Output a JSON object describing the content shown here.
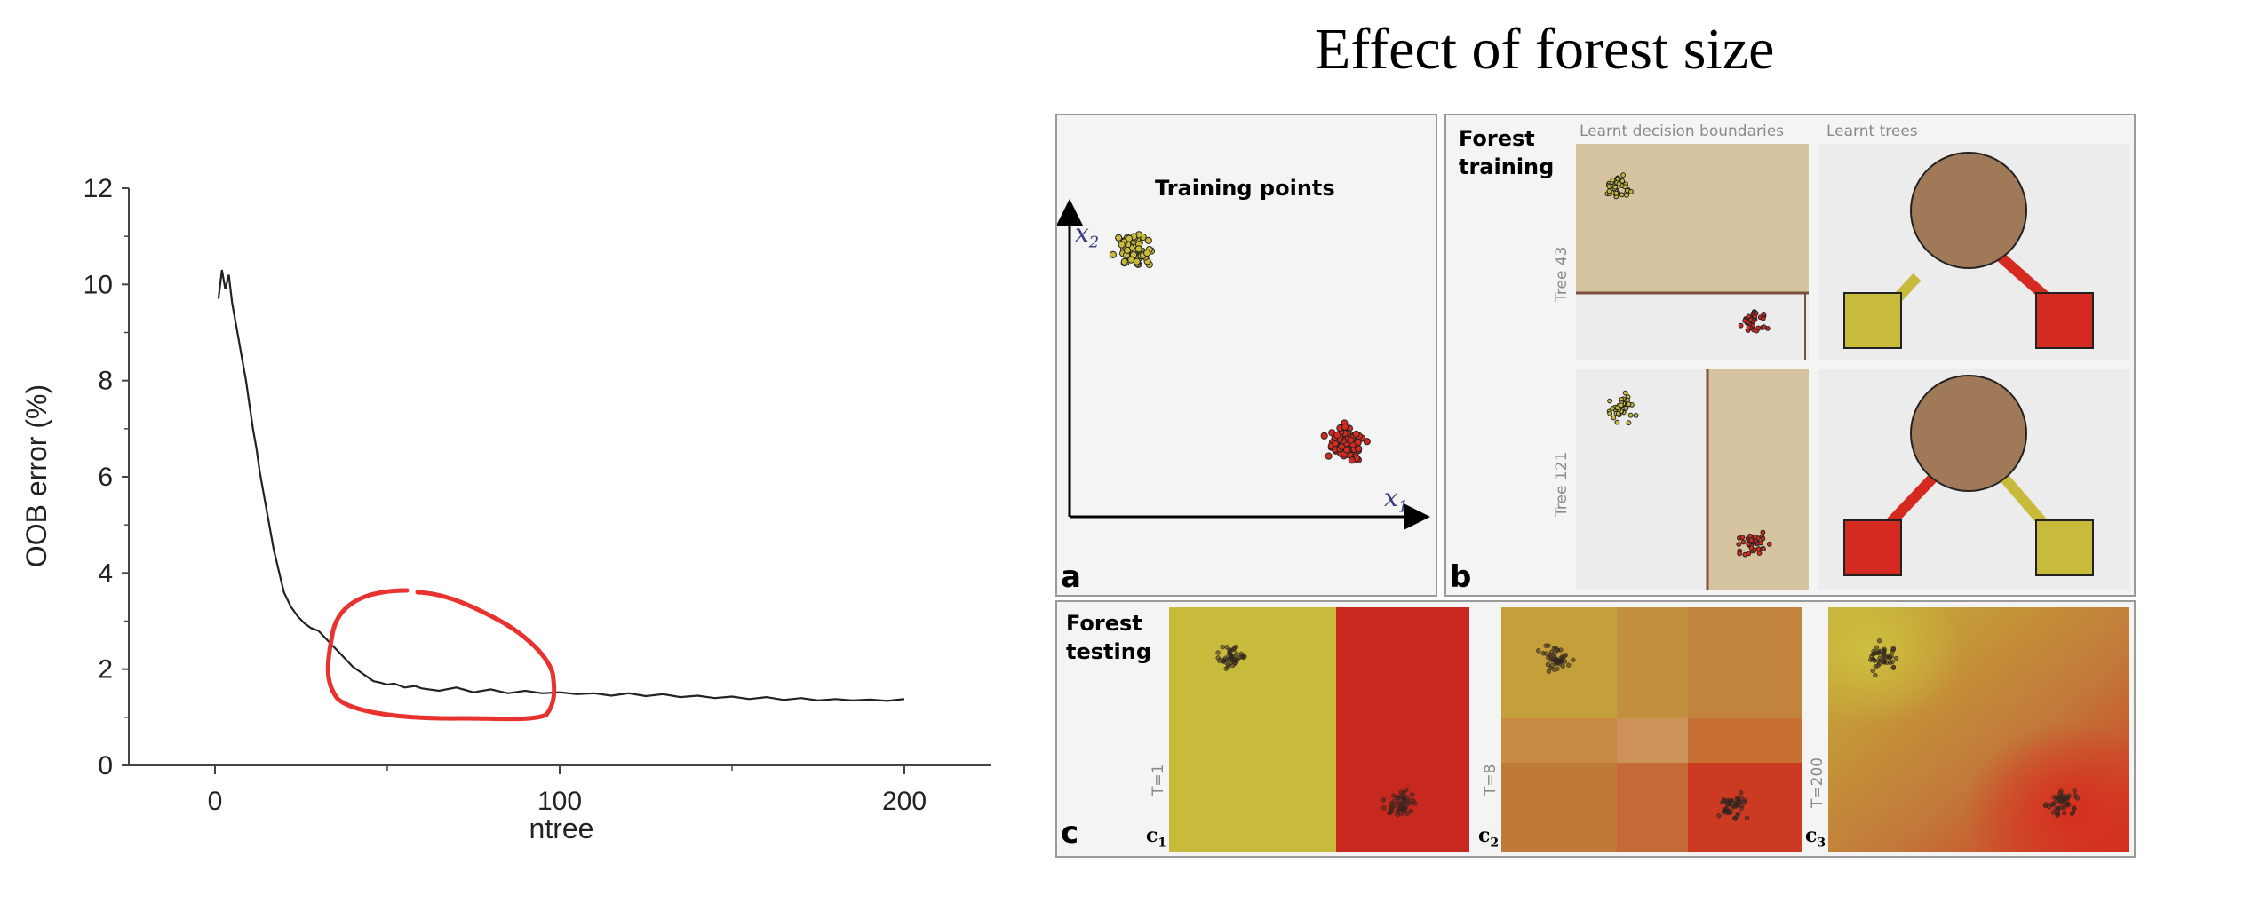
{
  "slide_title": "Effect of forest size",
  "chart_data": {
    "type": "line",
    "title": "",
    "xlabel": "ntree",
    "ylabel": "OOB error (%)",
    "xlim": [
      -25,
      225
    ],
    "ylim": [
      0,
      12
    ],
    "x_ticks": [
      "0",
      "100",
      "200"
    ],
    "y_ticks": [
      "0",
      "2",
      "4",
      "6",
      "8",
      "10",
      "12"
    ],
    "grid": false,
    "line_color": "#222222",
    "series": [
      {
        "x": [
          1,
          2,
          3,
          4,
          5,
          6,
          7,
          8,
          9,
          10,
          11,
          12,
          13,
          14,
          15,
          16,
          17,
          18,
          20,
          22,
          24,
          26,
          28,
          30,
          32,
          34,
          36,
          38,
          40,
          42,
          44,
          46,
          48,
          50,
          52,
          55,
          58,
          60,
          65,
          70,
          75,
          80,
          85,
          90,
          95,
          100,
          105,
          110,
          115,
          120,
          125,
          130,
          135,
          140,
          145,
          150,
          155,
          160,
          165,
          170,
          175,
          180,
          185,
          190,
          195,
          200
        ],
        "y": [
          9.7,
          10.3,
          9.9,
          10.2,
          9.6,
          9.2,
          8.8,
          8.4,
          8.0,
          7.5,
          7.0,
          6.6,
          6.1,
          5.7,
          5.3,
          4.9,
          4.5,
          4.2,
          3.6,
          3.3,
          3.1,
          2.95,
          2.85,
          2.8,
          2.65,
          2.5,
          2.35,
          2.2,
          2.05,
          1.95,
          1.85,
          1.75,
          1.72,
          1.68,
          1.7,
          1.62,
          1.65,
          1.6,
          1.55,
          1.62,
          1.52,
          1.58,
          1.5,
          1.55,
          1.5,
          1.52,
          1.48,
          1.5,
          1.45,
          1.5,
          1.44,
          1.48,
          1.42,
          1.45,
          1.4,
          1.43,
          1.38,
          1.42,
          1.36,
          1.4,
          1.35,
          1.38,
          1.35,
          1.37,
          1.34,
          1.38
        ]
      }
    ],
    "annotation_color": "#e8322f"
  },
  "figure": {
    "panel_a": {
      "letter": "a",
      "title": "Training points",
      "x_symbol": "x",
      "x_sub": "1",
      "y_symbol": "x",
      "y_sub": "2"
    },
    "panel_b": {
      "letter": "b",
      "title_line1": "Forest",
      "title_line2": "training",
      "col1_header": "Learnt decision boundaries",
      "col2_header": "Learnt trees",
      "row1_label": "Tree 43",
      "row2_label": "Tree 121"
    },
    "panel_c": {
      "letter": "c",
      "title_line1": "Forest",
      "title_line2": "testing",
      "cells": [
        {
          "t_label": "T=1",
          "sub_main": "c",
          "sub_index": "1"
        },
        {
          "t_label": "T=8",
          "sub_main": "c",
          "sub_index": "2"
        },
        {
          "t_label": "T=200",
          "sub_main": "c",
          "sub_index": "3"
        }
      ]
    },
    "colors": {
      "yellow_class": "#c8bb3c",
      "red_class": "#d42a20",
      "node_brown": "#a07a58",
      "boundary_tan": "#d6c4a0"
    }
  }
}
